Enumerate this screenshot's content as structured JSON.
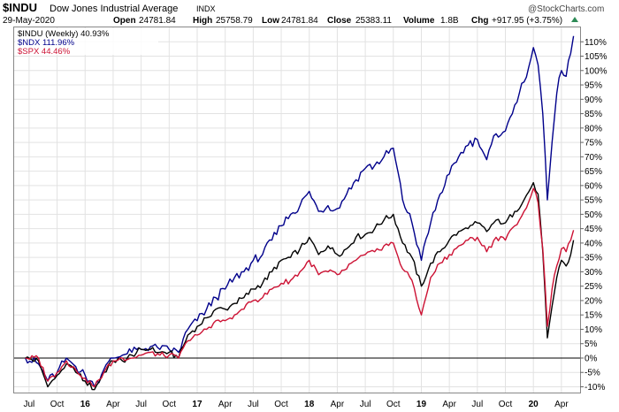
{
  "header": {
    "symbol": "$INDU",
    "name": "Dow Jones Industrial Average",
    "exchange": "INDX",
    "watermark": "@StockCharts.com",
    "date": "29-May-2020",
    "open_label": "Open",
    "open": "24781.84",
    "high_label": "High",
    "high": "25758.79",
    "low_label": "Low",
    "low": "24781.84",
    "close_label": "Close",
    "close": "25383.11",
    "volume_label": "Volume",
    "volume": "1.8B",
    "chg_label": "Chg",
    "chg": "+917.95 (+3.75%)"
  },
  "colors": {
    "indu": "#000000",
    "ndx": "#00008b",
    "spx": "#cc1133",
    "up_arrow": "#2e8b57",
    "grid": "#e2e2e2",
    "zero_line": "#000000"
  },
  "chart_data": {
    "type": "line",
    "title": "$INDU Dow Jones Industrial Average INDX",
    "xlabel": "",
    "ylabel": "",
    "ylim": [
      -12,
      115
    ],
    "y_ticks": [
      -10,
      -5,
      0,
      5,
      10,
      15,
      20,
      25,
      30,
      35,
      40,
      45,
      50,
      55,
      60,
      65,
      70,
      75,
      80,
      85,
      90,
      95,
      100,
      105,
      110
    ],
    "x_ticks": [
      {
        "label": "Jul",
        "t": 0.4
      },
      {
        "label": "Oct",
        "t": 3.4
      },
      {
        "label": "16",
        "t": 6.4,
        "bold": true
      },
      {
        "label": "Apr",
        "t": 9.4
      },
      {
        "label": "Jul",
        "t": 12.4
      },
      {
        "label": "Oct",
        "t": 15.4
      },
      {
        "label": "17",
        "t": 18.4,
        "bold": true
      },
      {
        "label": "Apr",
        "t": 21.4
      },
      {
        "label": "Jul",
        "t": 24.4
      },
      {
        "label": "Oct",
        "t": 27.4
      },
      {
        "label": "18",
        "t": 30.4,
        "bold": true
      },
      {
        "label": "Apr",
        "t": 33.4
      },
      {
        "label": "Jul",
        "t": 36.4
      },
      {
        "label": "Oct",
        "t": 39.4
      },
      {
        "label": "19",
        "t": 42.4,
        "bold": true
      },
      {
        "label": "Apr",
        "t": 45.4
      },
      {
        "label": "Jul",
        "t": 48.4
      },
      {
        "label": "Oct",
        "t": 51.4
      },
      {
        "label": "20",
        "t": 54.4,
        "bold": true
      },
      {
        "label": "Apr",
        "t": 57.4
      }
    ],
    "series": [
      {
        "name": "$INDU",
        "legend": "$INDU (Weekly) 40.93%",
        "anchors": [
          [
            0,
            0
          ],
          [
            1.4,
            -1
          ],
          [
            2.4,
            -10
          ],
          [
            3.4,
            -6
          ],
          [
            4.4,
            -2
          ],
          [
            5.4,
            -5
          ],
          [
            6.4,
            -8
          ],
          [
            7.4,
            -11
          ],
          [
            8.4,
            -5
          ],
          [
            9.4,
            -1
          ],
          [
            10.4,
            -1
          ],
          [
            11.4,
            1
          ],
          [
            12.4,
            3
          ],
          [
            13.4,
            3
          ],
          [
            14.4,
            2
          ],
          [
            15.4,
            2
          ],
          [
            16.4,
            0
          ],
          [
            17.4,
            8
          ],
          [
            18.4,
            11
          ],
          [
            19.4,
            14
          ],
          [
            20.4,
            17
          ],
          [
            21.4,
            17
          ],
          [
            22.4,
            19
          ],
          [
            23.4,
            21
          ],
          [
            24.4,
            24
          ],
          [
            25.4,
            26
          ],
          [
            26.4,
            30
          ],
          [
            27.4,
            34
          ],
          [
            28.4,
            35
          ],
          [
            29.4,
            38
          ],
          [
            30.4,
            42
          ],
          [
            31.4,
            36
          ],
          [
            32.4,
            39
          ],
          [
            33.4,
            36
          ],
          [
            34.4,
            38
          ],
          [
            35.4,
            42
          ],
          [
            36.4,
            43
          ],
          [
            37.4,
            45
          ],
          [
            38.4,
            48
          ],
          [
            39.4,
            50
          ],
          [
            40.4,
            40
          ],
          [
            41.4,
            35
          ],
          [
            42.4,
            25
          ],
          [
            43.4,
            33
          ],
          [
            44.4,
            37
          ],
          [
            45.4,
            41
          ],
          [
            46.4,
            44
          ],
          [
            47.4,
            45
          ],
          [
            48.4,
            47
          ],
          [
            49.4,
            44
          ],
          [
            50.4,
            48
          ],
          [
            51.4,
            47
          ],
          [
            52.4,
            51
          ],
          [
            53.4,
            55
          ],
          [
            54.4,
            61
          ],
          [
            54.9,
            57
          ],
          [
            55.4,
            37
          ],
          [
            55.9,
            7
          ],
          [
            56.4,
            18
          ],
          [
            56.9,
            28
          ],
          [
            57.4,
            34
          ],
          [
            57.9,
            32
          ],
          [
            58.4,
            36
          ],
          [
            58.7,
            41
          ]
        ]
      },
      {
        "name": "$NDX",
        "legend": "$NDX 111.96%",
        "anchors": [
          [
            0,
            0
          ],
          [
            1.4,
            -2
          ],
          [
            2.4,
            -8
          ],
          [
            3.4,
            -5
          ],
          [
            4.4,
            0
          ],
          [
            5.4,
            -3
          ],
          [
            6.4,
            -6
          ],
          [
            7.4,
            -10
          ],
          [
            8.4,
            -4
          ],
          [
            9.4,
            0
          ],
          [
            10.4,
            1
          ],
          [
            11.4,
            2
          ],
          [
            12.4,
            3
          ],
          [
            13.4,
            4
          ],
          [
            14.4,
            3
          ],
          [
            15.4,
            3
          ],
          [
            16.4,
            2
          ],
          [
            17.4,
            10
          ],
          [
            18.4,
            13
          ],
          [
            19.4,
            17
          ],
          [
            20.4,
            21
          ],
          [
            21.4,
            24
          ],
          [
            22.4,
            28
          ],
          [
            23.4,
            30
          ],
          [
            24.4,
            34
          ],
          [
            25.4,
            36
          ],
          [
            26.4,
            41
          ],
          [
            27.4,
            46
          ],
          [
            28.4,
            50
          ],
          [
            29.4,
            53
          ],
          [
            30.4,
            58
          ],
          [
            31.4,
            51
          ],
          [
            32.4,
            53
          ],
          [
            33.4,
            52
          ],
          [
            34.4,
            57
          ],
          [
            35.4,
            62
          ],
          [
            36.4,
            66
          ],
          [
            37.4,
            67
          ],
          [
            38.4,
            70
          ],
          [
            39.4,
            73
          ],
          [
            40.4,
            55
          ],
          [
            41.4,
            47
          ],
          [
            42.4,
            34
          ],
          [
            43.4,
            47
          ],
          [
            44.4,
            57
          ],
          [
            45.4,
            64
          ],
          [
            46.4,
            70
          ],
          [
            47.4,
            74
          ],
          [
            48.4,
            76
          ],
          [
            49.4,
            69
          ],
          [
            50.4,
            78
          ],
          [
            51.4,
            79
          ],
          [
            52.4,
            88
          ],
          [
            53.4,
            96
          ],
          [
            54.4,
            108
          ],
          [
            54.9,
            102
          ],
          [
            55.4,
            85
          ],
          [
            55.9,
            55
          ],
          [
            56.4,
            75
          ],
          [
            56.9,
            92
          ],
          [
            57.4,
            100
          ],
          [
            57.9,
            98
          ],
          [
            58.4,
            106
          ],
          [
            58.7,
            112
          ]
        ]
      },
      {
        "name": "$SPX",
        "legend": "$SPX 44.46%",
        "anchors": [
          [
            0,
            0
          ],
          [
            1.4,
            0
          ],
          [
            2.4,
            -8
          ],
          [
            3.4,
            -5
          ],
          [
            4.4,
            -1
          ],
          [
            5.4,
            -4
          ],
          [
            6.4,
            -7
          ],
          [
            7.4,
            -10
          ],
          [
            8.4,
            -5
          ],
          [
            9.4,
            -1
          ],
          [
            10.4,
            0
          ],
          [
            11.4,
            0
          ],
          [
            12.4,
            1
          ],
          [
            13.4,
            2
          ],
          [
            14.4,
            1
          ],
          [
            15.4,
            1
          ],
          [
            16.4,
            0
          ],
          [
            17.4,
            6
          ],
          [
            18.4,
            8
          ],
          [
            19.4,
            10
          ],
          [
            20.4,
            13
          ],
          [
            21.4,
            13
          ],
          [
            22.4,
            15
          ],
          [
            23.4,
            17
          ],
          [
            24.4,
            20
          ],
          [
            25.4,
            21
          ],
          [
            26.4,
            24
          ],
          [
            27.4,
            26
          ],
          [
            28.4,
            27
          ],
          [
            29.4,
            30
          ],
          [
            30.4,
            34
          ],
          [
            31.4,
            29
          ],
          [
            32.4,
            30
          ],
          [
            33.4,
            29
          ],
          [
            34.4,
            31
          ],
          [
            35.4,
            34
          ],
          [
            36.4,
            36
          ],
          [
            37.4,
            37
          ],
          [
            38.4,
            39
          ],
          [
            39.4,
            40
          ],
          [
            40.4,
            31
          ],
          [
            41.4,
            27
          ],
          [
            42.4,
            15
          ],
          [
            43.4,
            28
          ],
          [
            44.4,
            33
          ],
          [
            45.4,
            36
          ],
          [
            46.4,
            39
          ],
          [
            47.4,
            41
          ],
          [
            48.4,
            42
          ],
          [
            49.4,
            37
          ],
          [
            50.4,
            42
          ],
          [
            51.4,
            41
          ],
          [
            52.4,
            46
          ],
          [
            53.4,
            51
          ],
          [
            54.4,
            59
          ],
          [
            54.9,
            54
          ],
          [
            55.4,
            38
          ],
          [
            55.9,
            11
          ],
          [
            56.4,
            24
          ],
          [
            56.9,
            32
          ],
          [
            57.4,
            38
          ],
          [
            57.9,
            37
          ],
          [
            58.4,
            41
          ],
          [
            58.7,
            44.5
          ]
        ]
      }
    ]
  }
}
